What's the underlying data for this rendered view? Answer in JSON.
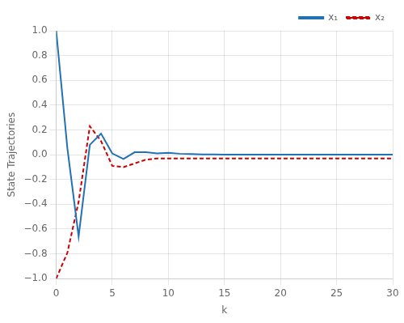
{
  "chart_data": {
    "type": "line",
    "xlabel": "k",
    "ylabel": "State Trajectories",
    "x": [
      0,
      1,
      2,
      3,
      4,
      5,
      6,
      7,
      8,
      9,
      10,
      11,
      12,
      13,
      14,
      15,
      16,
      17,
      18,
      19,
      20,
      21,
      22,
      23,
      24,
      25,
      26,
      27,
      28,
      29,
      30
    ],
    "series": [
      {
        "name": "x₁",
        "color": "#2171b5",
        "line_style": "solid",
        "values": [
          1.0,
          0.05,
          -0.66,
          0.08,
          0.17,
          0.01,
          -0.035,
          0.02,
          0.02,
          0.01,
          0.015,
          0.008,
          0.005,
          0.003,
          0.002,
          0.001,
          0.001,
          0.001,
          0.001,
          0.001,
          0.001,
          0.001,
          0.001,
          0.001,
          0.001,
          0.001,
          0.001,
          0.001,
          0.001,
          0.001,
          0.001
        ]
      },
      {
        "name": "x₂",
        "color": "#cc0000",
        "line_style": "dashed",
        "values": [
          -1.0,
          -0.79,
          -0.38,
          0.23,
          0.11,
          -0.09,
          -0.1,
          -0.07,
          -0.04,
          -0.03,
          -0.03,
          -0.03,
          -0.03,
          -0.03,
          -0.03,
          -0.03,
          -0.03,
          -0.03,
          -0.03,
          -0.03,
          -0.03,
          -0.03,
          -0.03,
          -0.03,
          -0.03,
          -0.03,
          -0.03,
          -0.03,
          -0.03,
          -0.03,
          -0.03
        ]
      }
    ],
    "xlim": [
      0,
      30
    ],
    "ylim": [
      -1.0,
      1.0
    ],
    "xticks": [
      0,
      5,
      10,
      15,
      20,
      25,
      30
    ],
    "yticks": [
      {
        "value": -1.0,
        "label": "−1.0"
      },
      {
        "value": -0.8,
        "label": "−0.8"
      },
      {
        "value": -0.6,
        "label": "−0.6"
      },
      {
        "value": -0.4,
        "label": "−0.4"
      },
      {
        "value": -0.2,
        "label": "−0.2"
      },
      {
        "value": 0.0,
        "label": "0.0"
      },
      0.2,
      0.4,
      0.6,
      0.8,
      {
        "value": 1.0,
        "label": "1.0"
      }
    ],
    "grid": true,
    "legend": "upper right"
  }
}
